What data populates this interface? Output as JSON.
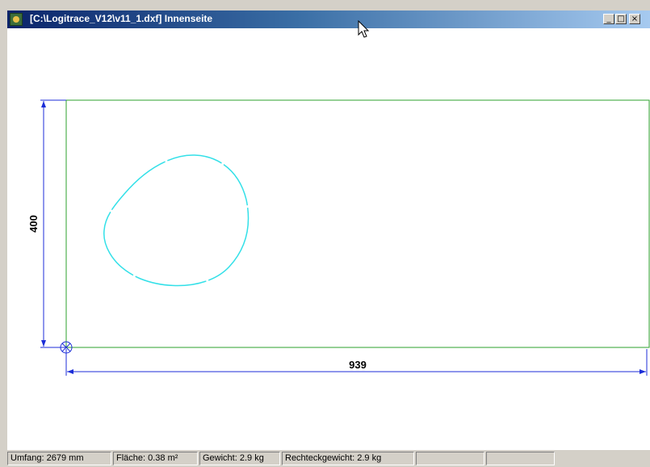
{
  "window": {
    "title": "[C:\\Logitrace_V12\\v11_1.dxf] Innenseite",
    "minimize_label": "_",
    "maximize_label": "□",
    "close_label": "×"
  },
  "drawing": {
    "height_dimension": "400",
    "width_dimension": "939",
    "colors": {
      "outline": "#2ea02e",
      "dimension": "#1c2ed8",
      "shape": "#33e0e8"
    }
  },
  "status": {
    "umfang": "Umfang: 2679 mm",
    "flaeche": "Fläche: 0.38 m²",
    "gewicht": "Gewicht: 2.9 kg",
    "rechteckgewicht": "Rechteckgewicht: 2.9 kg",
    "empty1": "",
    "empty2": ""
  }
}
